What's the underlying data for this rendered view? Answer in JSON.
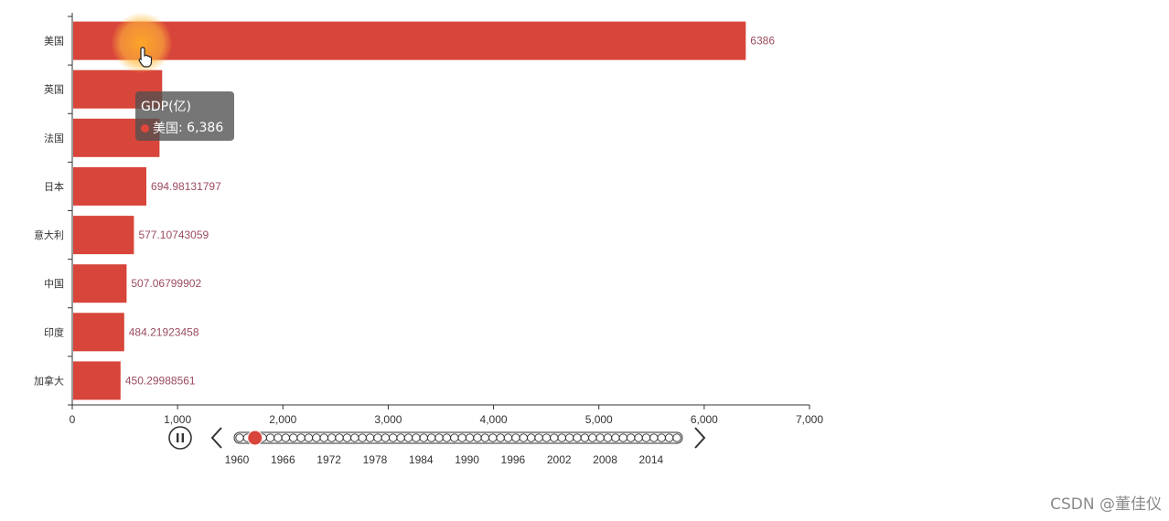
{
  "chart_data": {
    "type": "bar",
    "orientation": "horizontal",
    "categories": [
      "美国",
      "英国",
      "法国",
      "日本",
      "意大利",
      "中国",
      "印度",
      "加拿大"
    ],
    "value_labels": [
      "6386",
      "",
      "",
      "694.98131797",
      "577.10743059",
      "507.06799902",
      "484.21923458",
      "450.29988561"
    ],
    "values": [
      6386,
      845,
      820,
      694.98131797,
      577.10743059,
      507.06799902,
      484.21923458,
      450.29988561
    ],
    "xlim": [
      0,
      7000
    ],
    "x_ticks": [
      "0",
      "1,000",
      "2,000",
      "3,000",
      "4,000",
      "5,000",
      "6,000",
      "7,000"
    ],
    "bar_color": "#d8453a",
    "grid": false,
    "tooltip": {
      "title": "GDP(亿)",
      "series": "美国",
      "value": "6,386"
    },
    "timeline": {
      "years": [
        "1960",
        "1966",
        "1972",
        "1978",
        "1984",
        "1990",
        "1996",
        "2002",
        "2008",
        "2014"
      ],
      "current_index": 2,
      "point_count": 58,
      "pause_icon": "pause-icon",
      "prev_icon": "chevron-left-icon",
      "next_icon": "chevron-right-icon",
      "accent": "#d8453a"
    }
  },
  "watermark": "CSDN @董佳仪"
}
